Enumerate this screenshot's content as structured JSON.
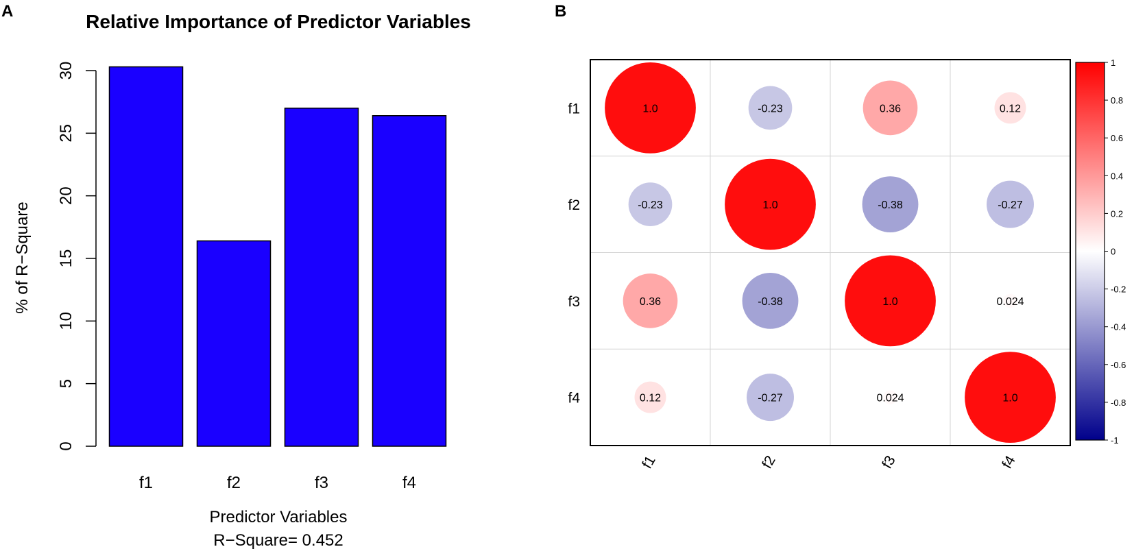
{
  "colors": {
    "bar": "#1a00ff",
    "pos": "#ff0000",
    "neg": "#00008b",
    "mid": "#ffffff",
    "grid": "#d3d3d3"
  },
  "chart_data": [
    {
      "panel": "A",
      "type": "bar",
      "title": "Relative Importance of Predictor Variables",
      "categories": [
        "f1",
        "f2",
        "f3",
        "f4"
      ],
      "values": [
        30.3,
        16.4,
        27.0,
        26.4
      ],
      "ylabel": "% of R−Square",
      "xlabel": "Predictor Variables",
      "subtitle": "R−Square= 0.452",
      "ylim": [
        0,
        30
      ],
      "yticks": [
        "0",
        "5",
        "10",
        "15",
        "20",
        "25",
        "30"
      ]
    },
    {
      "panel": "B",
      "type": "heatmap",
      "variables": [
        "f1",
        "f2",
        "f3",
        "f4"
      ],
      "matrix": [
        [
          1.0,
          -0.23,
          0.36,
          0.12
        ],
        [
          -0.23,
          1.0,
          -0.38,
          -0.27
        ],
        [
          0.36,
          -0.38,
          1.0,
          0.024
        ],
        [
          0.12,
          -0.27,
          0.024,
          1.0
        ]
      ],
      "labels": [
        [
          "1.0",
          "-0.23",
          "0.36",
          "0.12"
        ],
        [
          "-0.23",
          "1.0",
          "-0.38",
          "-0.27"
        ],
        [
          "0.36",
          "-0.38",
          "1.0",
          "0.024"
        ],
        [
          "0.12",
          "-0.27",
          "0.024",
          "1.0"
        ]
      ],
      "colorbar_range": [
        -1,
        1
      ],
      "colorbar_ticks": [
        "1",
        "0.8",
        "0.6",
        "0.4",
        "0.2",
        "0",
        "-0.2",
        "-0.4",
        "-0.6",
        "-0.8",
        "-1"
      ]
    }
  ]
}
